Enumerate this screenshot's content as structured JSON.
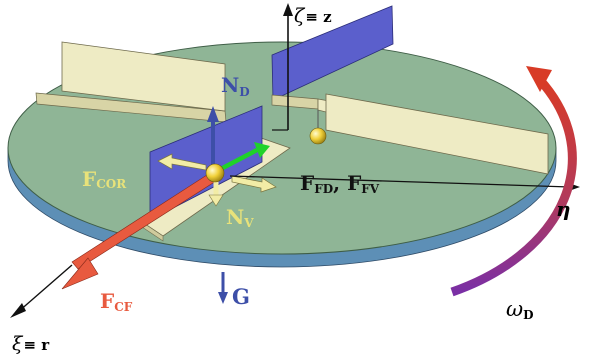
{
  "labels": {
    "zeta_axis": {
      "main": "ζ",
      "rest": "≡ z"
    },
    "xi_axis": {
      "main": "ξ",
      "rest": "≡ r"
    },
    "eta_axis": {
      "main": "η"
    },
    "omega": {
      "main": "ω",
      "sub": "D"
    },
    "n_d": {
      "main": "N",
      "sub": "D"
    },
    "n_v": {
      "main": "N",
      "sub": "V"
    },
    "f_cor": {
      "main": "F",
      "sub": "COR"
    },
    "f_cf": {
      "main": "F",
      "sub": "CF"
    },
    "f_fd_fv": {
      "main1": "F",
      "sub1": "FD",
      "sep": ", ",
      "main2": "F",
      "sub2": "FV"
    },
    "g": {
      "main": "G"
    }
  },
  "colors": {
    "disk_top": "#8fb596",
    "disk_side": "#5d8fb6",
    "wall_blue": "#5b5fcc",
    "rail": "#eeebc4",
    "force_red": "#e85a3f",
    "force_yellow": "#f2eca6",
    "label_yellow": "#e8e27a",
    "label_blue": "#3d4fa8",
    "omega_red": "#d83b26",
    "omega_purple": "#7a2fa5",
    "green": "#1fd22a"
  }
}
